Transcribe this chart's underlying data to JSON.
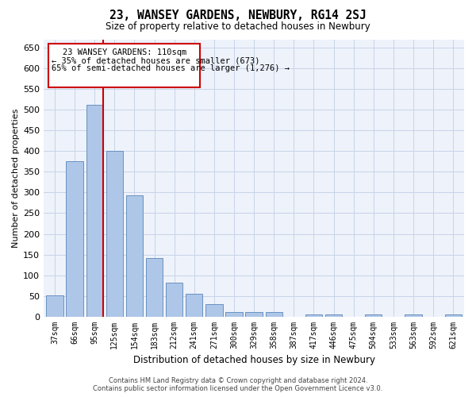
{
  "title": "23, WANSEY GARDENS, NEWBURY, RG14 2SJ",
  "subtitle": "Size of property relative to detached houses in Newbury",
  "xlabel": "Distribution of detached houses by size in Newbury",
  "ylabel": "Number of detached properties",
  "categories": [
    "37sqm",
    "66sqm",
    "95sqm",
    "125sqm",
    "154sqm",
    "183sqm",
    "212sqm",
    "241sqm",
    "271sqm",
    "300sqm",
    "329sqm",
    "358sqm",
    "387sqm",
    "417sqm",
    "446sqm",
    "475sqm",
    "504sqm",
    "533sqm",
    "563sqm",
    "592sqm",
    "621sqm"
  ],
  "values": [
    51,
    375,
    512,
    400,
    293,
    141,
    82,
    55,
    30,
    11,
    10,
    11,
    0,
    5,
    5,
    0,
    5,
    0,
    5,
    0,
    5
  ],
  "bar_color": "#aec6e8",
  "bar_edge_color": "#5a87b8",
  "marker_line_color": "#cc0000",
  "annotation_line1": "23 WANSEY GARDENS: 110sqm",
  "annotation_line2": "← 35% of detached houses are smaller (673)",
  "annotation_line3": "65% of semi-detached houses are larger (1,276) →",
  "annotation_box_color": "#cc0000",
  "footer_line1": "Contains HM Land Registry data © Crown copyright and database right 2024.",
  "footer_line2": "Contains public sector information licensed under the Open Government Licence v3.0.",
  "ylim": [
    0,
    670
  ],
  "yticks": [
    0,
    50,
    100,
    150,
    200,
    250,
    300,
    350,
    400,
    450,
    500,
    550,
    600,
    650
  ],
  "plot_bg_color": "#eef2fa",
  "grid_color": "#c8d4e8"
}
